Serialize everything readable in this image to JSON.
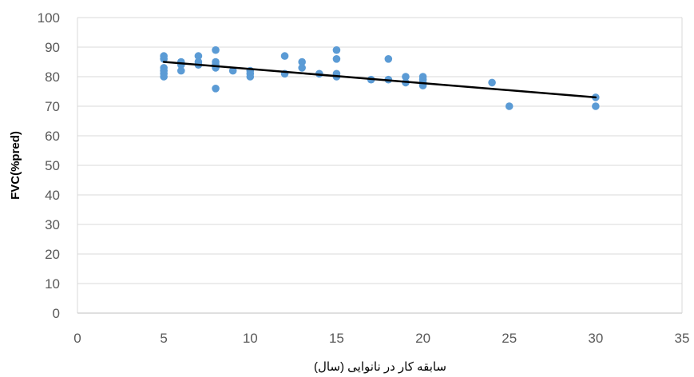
{
  "chart_data": {
    "type": "scatter",
    "xlabel": "سابقه کار در نانوایی (سال)",
    "ylabel": "FVC(%pred)",
    "xlim": [
      0,
      35
    ],
    "ylim": [
      0,
      100
    ],
    "x_ticks": [
      0,
      5,
      10,
      15,
      20,
      25,
      30,
      35
    ],
    "y_ticks": [
      0,
      10,
      20,
      30,
      40,
      50,
      60,
      70,
      80,
      90,
      100
    ],
    "x_tick_labels": [
      "0",
      "5",
      "10",
      "15",
      "20",
      "25",
      "30",
      "35"
    ],
    "y_tick_labels": [
      "0",
      "10",
      "20",
      "30",
      "40",
      "50",
      "60",
      "70",
      "80",
      "90",
      "100"
    ],
    "grid": "horizontal",
    "series": [
      {
        "points": [
          [
            5,
            87
          ],
          [
            5,
            86
          ],
          [
            5,
            83
          ],
          [
            5,
            82
          ],
          [
            5,
            81
          ],
          [
            5,
            80
          ],
          [
            6,
            85
          ],
          [
            6,
            84
          ],
          [
            6,
            82
          ],
          [
            7,
            87
          ],
          [
            7,
            85
          ],
          [
            7,
            84
          ],
          [
            8,
            89
          ],
          [
            8,
            85
          ],
          [
            8,
            84
          ],
          [
            8,
            83
          ],
          [
            8,
            76
          ],
          [
            9,
            82
          ],
          [
            10,
            82
          ],
          [
            10,
            81
          ],
          [
            10,
            80
          ],
          [
            12,
            87
          ],
          [
            12,
            81
          ],
          [
            13,
            85
          ],
          [
            13,
            83
          ],
          [
            14,
            81
          ],
          [
            15,
            89
          ],
          [
            15,
            86
          ],
          [
            15,
            81
          ],
          [
            15,
            80
          ],
          [
            17,
            79
          ],
          [
            18,
            86
          ],
          [
            18,
            79
          ],
          [
            19,
            80
          ],
          [
            19,
            78
          ],
          [
            20,
            80
          ],
          [
            20,
            79
          ],
          [
            20,
            78
          ],
          [
            20,
            77
          ],
          [
            24,
            78
          ],
          [
            25,
            70
          ],
          [
            30,
            73
          ],
          [
            30,
            70
          ]
        ],
        "color": "#5B9BD5"
      }
    ],
    "trendline": {
      "from": [
        5,
        85
      ],
      "to": [
        30,
        73
      ],
      "color": "#000000"
    }
  }
}
